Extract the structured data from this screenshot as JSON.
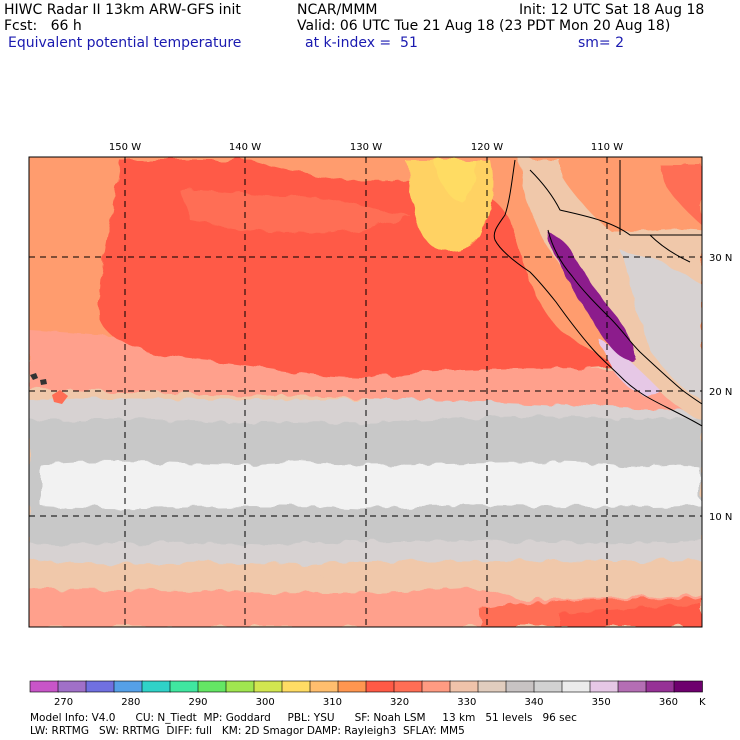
{
  "header": {
    "line1_left": "HIWC Radar II 13km ARW-GFS init",
    "line1_mid": "NCAR/MMM",
    "line1_right": "Init: 12 UTC Sat 18 Aug 18",
    "line2_left": "Fcst:   66 h",
    "line2_right": "Valid: 06 UTC Tue 21 Aug 18 (23 PDT Mon 20 Aug 18)",
    "field_name": "Equivalent potential temperature",
    "level": "at k-index =  51",
    "smoothing": "sm= 2"
  },
  "map": {
    "lon_labels": [
      "150 W",
      "140 W",
      "130 W",
      "120 W",
      "110 W"
    ],
    "lat_labels": [
      "30 N",
      "20 N",
      "10 N"
    ]
  },
  "colorbar": {
    "unit": "K",
    "tick_labels": [
      "270",
      "280",
      "290",
      "300",
      "310",
      "320",
      "330",
      "340",
      "350",
      "360"
    ],
    "colors": [
      "#c855c8",
      "#a070c8",
      "#7070e0",
      "#55a0e8",
      "#30d2c8",
      "#40e6a0",
      "#64e664",
      "#a0e650",
      "#d2e650",
      "#ffdc64",
      "#ffbe6e",
      "#ff9650",
      "#ff5a46",
      "#ff6e55",
      "#ff9b82",
      "#f0c3aa",
      "#e1cdbe",
      "#c8c3c3",
      "#d2d2d2",
      "#ececec",
      "#e6c8e6",
      "#b46eb4",
      "#963296",
      "#6e006e"
    ]
  },
  "footer": {
    "line1": "Model Info: V4.0      CU: N_Tiedt  MP: Goddard     PBL: YSU      SF: Noah LSM     13 km   51 levels   96 sec",
    "line2": "LW: RRTMG   SW: RRTMG  DIFF: full   KM: 2D Smagor DAMP: Rayleigh3  SFLAY: MM5"
  },
  "legend_colors": {
    "ocean_orange": "#ff9c6e",
    "ocean_red": "#ff5a46",
    "ocean_yellow": "#ffd264",
    "salmon": "#ffa08c",
    "tan": "#f0c8aa",
    "gray_light": "#d7d2d2",
    "gray": "#c8c8c8",
    "white": "#f2f2f2",
    "purple": "#8c1e8c",
    "lavender": "#e6c8e6"
  }
}
